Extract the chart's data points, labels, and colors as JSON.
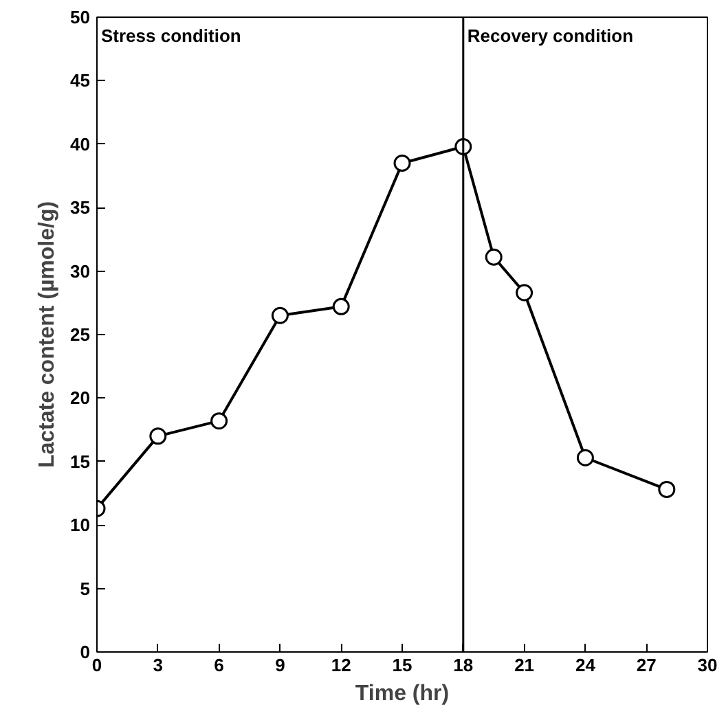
{
  "chart_data": {
    "type": "line",
    "xlabel": "Time (hr)",
    "ylabel": "Lactate content (µmole/g)",
    "x": [
      0,
      3,
      6,
      9,
      12,
      15,
      18,
      19.5,
      21,
      24,
      28
    ],
    "values": [
      11.3,
      17.0,
      18.2,
      26.5,
      27.2,
      38.5,
      39.8,
      31.1,
      28.3,
      15.3,
      12.8
    ],
    "color": "#000000",
    "marker": "circle",
    "line_style": "solid",
    "xlim": [
      0,
      30
    ],
    "xticks": [
      0,
      3,
      6,
      9,
      12,
      15,
      18,
      21,
      24,
      27,
      30
    ],
    "ylim": [
      0,
      50
    ],
    "yticks": [
      0,
      5,
      10,
      15,
      20,
      25,
      30,
      35,
      40,
      45,
      50
    ],
    "grid": false,
    "ref_lines": [
      {
        "axis": "x",
        "value": 18,
        "color": "#000000"
      }
    ],
    "annotations": [
      "Stress condition",
      "Recovery condition"
    ]
  }
}
